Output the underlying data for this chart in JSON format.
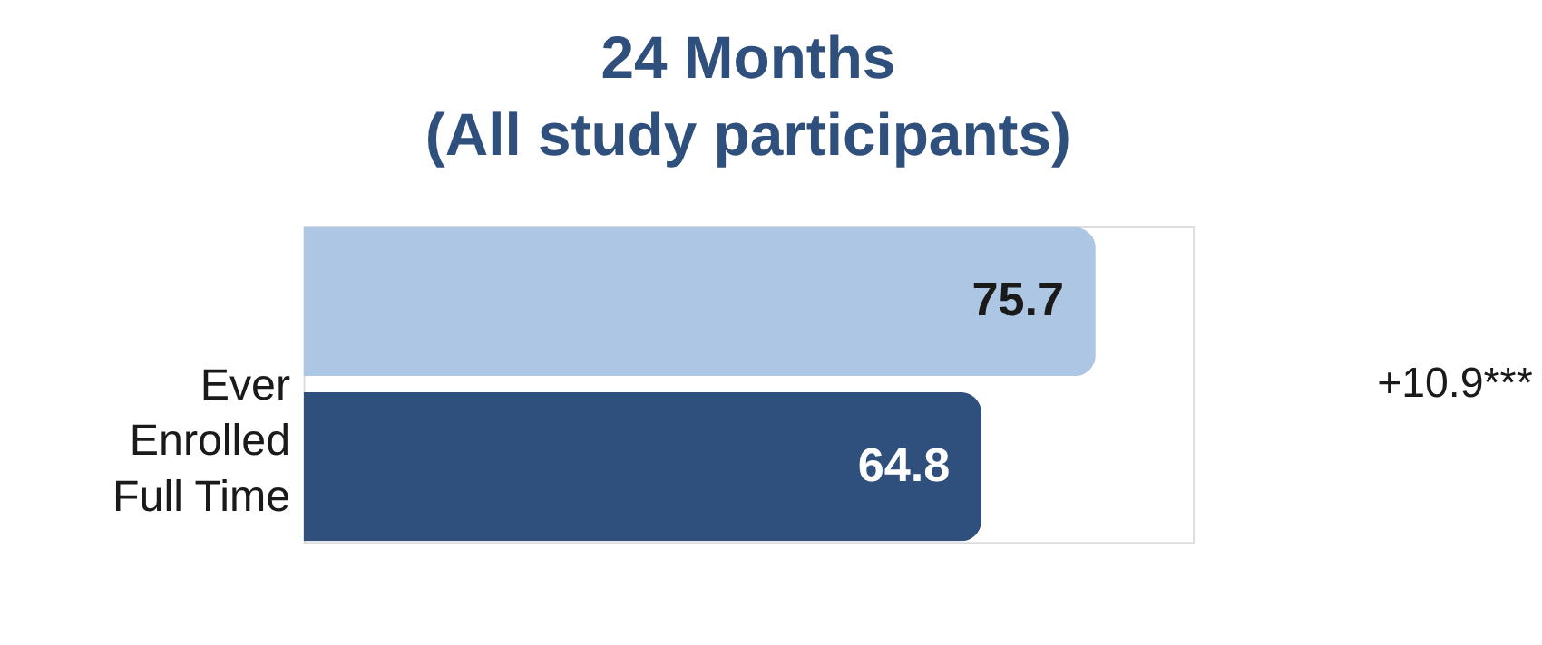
{
  "chart_data": {
    "type": "bar",
    "orientation": "horizontal",
    "title": "24 Months\n(All study participants)",
    "ylabel": "Ever Enrolled Full Time",
    "categories": [
      null,
      null
    ],
    "values": [
      75.7,
      64.8
    ],
    "colors": [
      "#adc6e4",
      "#2f4f7d"
    ],
    "xlim": [
      0,
      85
    ],
    "tick_labels": false,
    "data_labels": true,
    "annotations": [
      "+10.9***"
    ]
  }
}
